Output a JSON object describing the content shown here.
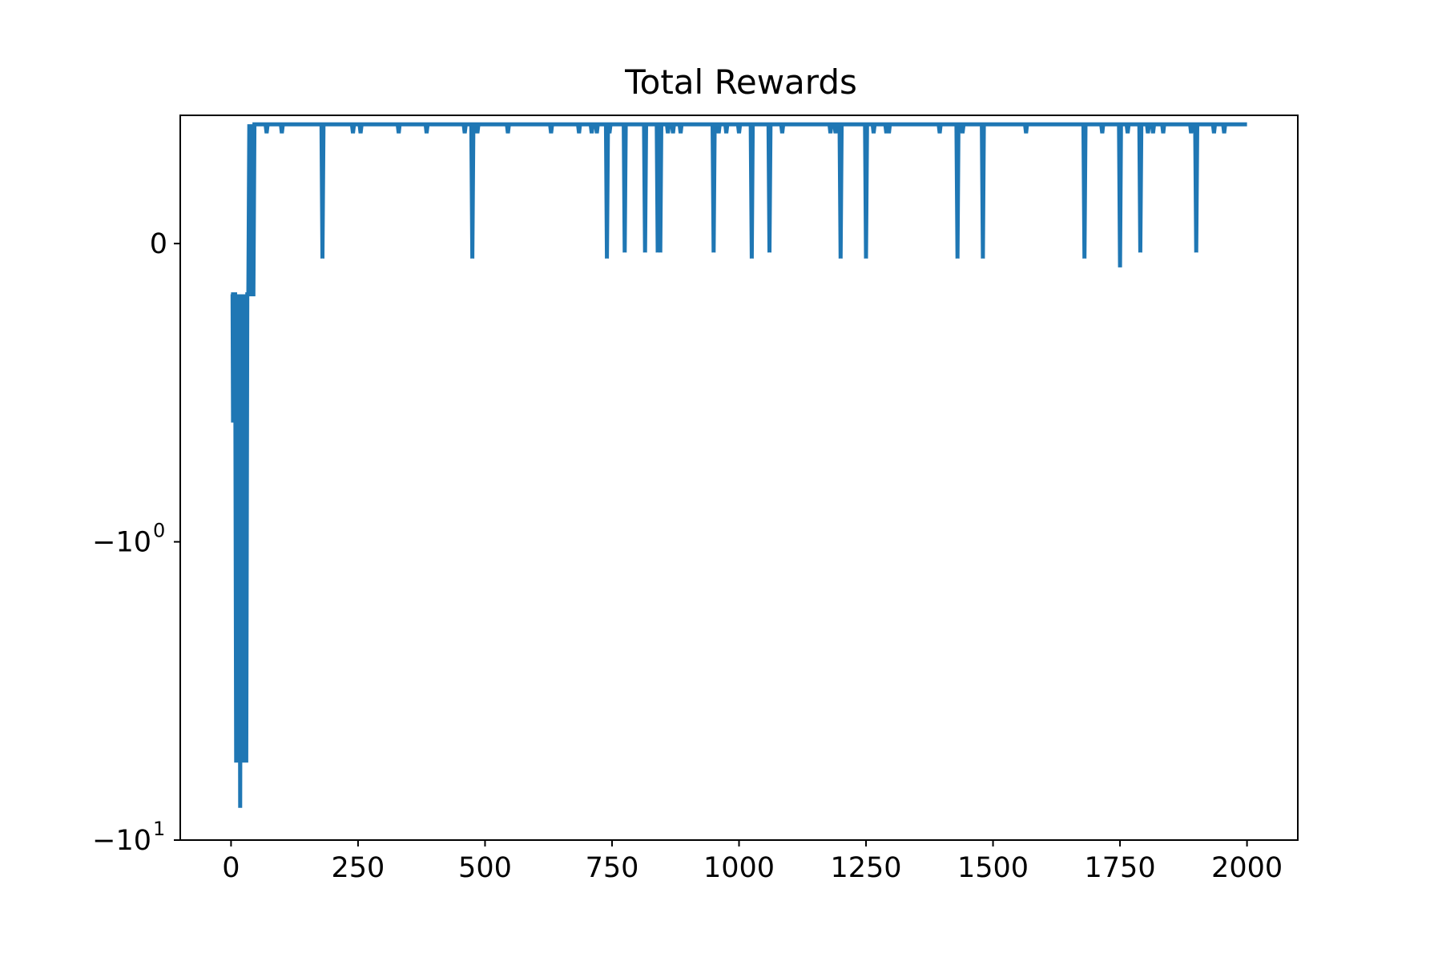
{
  "chart_data": {
    "type": "line",
    "title": "Total Rewards",
    "xlabel": "",
    "ylabel": "",
    "xlim": [
      -100,
      2100
    ],
    "ylim": [
      -10.0,
      0.43
    ],
    "yscale": "symlog",
    "grid": false,
    "legend": "none",
    "xticks": [
      {
        "value": 0,
        "label": "0"
      },
      {
        "value": 250,
        "label": "250"
      },
      {
        "value": 500,
        "label": "500"
      },
      {
        "value": 750,
        "label": "750"
      },
      {
        "value": 1000,
        "label": "1000"
      },
      {
        "value": 1250,
        "label": "1250"
      },
      {
        "value": 1500,
        "label": "1500"
      },
      {
        "value": 1750,
        "label": "1750"
      },
      {
        "value": 2000,
        "label": "2000"
      }
    ],
    "yticks": [
      {
        "value": 0,
        "label": "0",
        "sup": ""
      },
      {
        "value": -1,
        "label": "−10",
        "sup": "0"
      },
      {
        "value": -10,
        "label": "−10",
        "sup": "1"
      }
    ],
    "series": [
      {
        "color": "#1f77b4",
        "baseline": 0.4,
        "early_segment": [
          [
            0,
            -0.17
          ],
          [
            3,
            -0.17
          ],
          [
            4,
            -0.6
          ],
          [
            6,
            -0.17
          ],
          [
            8,
            -0.17
          ],
          [
            10,
            -5.5
          ],
          [
            12,
            -0.17
          ],
          [
            14,
            -5.5
          ],
          [
            16,
            -0.17
          ],
          [
            18,
            -7.8
          ],
          [
            20,
            -0.17
          ],
          [
            22,
            -5.5
          ],
          [
            24,
            -0.17
          ],
          [
            26,
            -5.5
          ],
          [
            28,
            -0.17
          ],
          [
            30,
            -5.5
          ],
          [
            32,
            -0.17
          ],
          [
            34,
            -0.17
          ],
          [
            36,
            0.4
          ],
          [
            38,
            -0.17
          ],
          [
            40,
            0.4
          ],
          [
            42,
            -0.17
          ],
          [
            44,
            -0.17
          ],
          [
            46,
            0.4
          ]
        ],
        "dips": [
          [
            70,
            0.37
          ],
          [
            100,
            0.37
          ],
          [
            180,
            -0.05
          ],
          [
            240,
            0.37
          ],
          [
            255,
            0.37
          ],
          [
            330,
            0.37
          ],
          [
            385,
            0.37
          ],
          [
            460,
            0.37
          ],
          [
            475,
            -0.05
          ],
          [
            485,
            0.37
          ],
          [
            545,
            0.37
          ],
          [
            630,
            0.37
          ],
          [
            685,
            0.37
          ],
          [
            710,
            0.37
          ],
          [
            720,
            0.37
          ],
          [
            740,
            -0.05
          ],
          [
            745,
            0.37
          ],
          [
            775,
            -0.03
          ],
          [
            815,
            -0.03
          ],
          [
            840,
            -0.03
          ],
          [
            845,
            -0.03
          ],
          [
            860,
            0.37
          ],
          [
            870,
            0.37
          ],
          [
            885,
            0.37
          ],
          [
            950,
            -0.03
          ],
          [
            960,
            0.37
          ],
          [
            975,
            0.37
          ],
          [
            1000,
            0.37
          ],
          [
            1025,
            -0.05
          ],
          [
            1060,
            -0.03
          ],
          [
            1085,
            0.37
          ],
          [
            1180,
            0.37
          ],
          [
            1190,
            0.37
          ],
          [
            1200,
            -0.05
          ],
          [
            1250,
            -0.05
          ],
          [
            1265,
            0.37
          ],
          [
            1290,
            0.37
          ],
          [
            1295,
            0.37
          ],
          [
            1395,
            0.37
          ],
          [
            1430,
            -0.05
          ],
          [
            1440,
            0.37
          ],
          [
            1480,
            -0.05
          ],
          [
            1565,
            0.37
          ],
          [
            1680,
            -0.05
          ],
          [
            1715,
            0.37
          ],
          [
            1750,
            -0.08
          ],
          [
            1765,
            0.37
          ],
          [
            1790,
            -0.03
          ],
          [
            1805,
            0.37
          ],
          [
            1815,
            0.37
          ],
          [
            1835,
            0.37
          ],
          [
            1890,
            0.37
          ],
          [
            1900,
            -0.03
          ],
          [
            1935,
            0.37
          ],
          [
            1955,
            0.37
          ]
        ],
        "end_x": 2000
      }
    ]
  }
}
